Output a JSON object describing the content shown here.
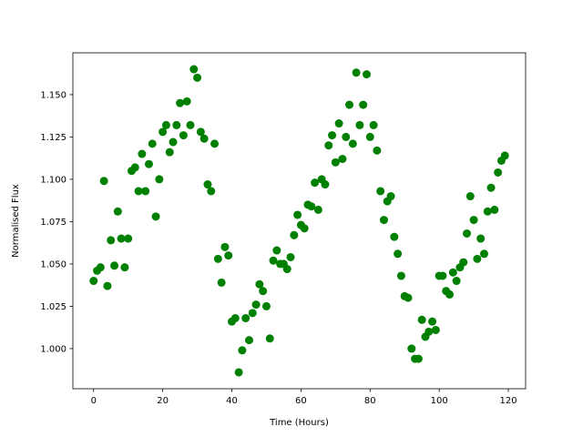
{
  "chart_data": {
    "type": "scatter",
    "title": "",
    "xlabel": "Time (Hours)",
    "ylabel": "Normalised Flux",
    "xlim": [
      -6,
      125
    ],
    "ylim": [
      0.9763,
      1.1747
    ],
    "xticks": [
      0,
      20,
      40,
      60,
      80,
      100,
      120
    ],
    "xtick_labels": [
      "0",
      "20",
      "40",
      "60",
      "80",
      "100",
      "120"
    ],
    "yticks": [
      1.0,
      1.025,
      1.05,
      1.075,
      1.1,
      1.125,
      1.15
    ],
    "ytick_labels": [
      "1.000",
      "1.025",
      "1.050",
      "1.075",
      "1.100",
      "1.125",
      "1.150"
    ],
    "grid": false,
    "color": "#008000",
    "x": [
      0,
      1,
      2,
      3,
      4,
      5,
      6,
      7,
      8,
      9,
      10,
      11,
      12,
      13,
      14,
      15,
      16,
      17,
      18,
      19,
      20,
      21,
      22,
      23,
      24,
      25,
      26,
      27,
      28,
      29,
      30,
      31,
      32,
      33,
      34,
      35,
      36,
      37,
      38,
      39,
      40,
      41,
      42,
      43,
      44,
      45,
      46,
      47,
      48,
      49,
      50,
      51,
      52,
      53,
      54,
      55,
      56,
      57,
      58,
      59,
      60,
      61,
      62,
      63,
      64,
      65,
      66,
      67,
      68,
      69,
      70,
      71,
      72,
      73,
      74,
      75,
      76,
      77,
      78,
      79,
      80,
      81,
      82,
      83,
      84,
      85,
      86,
      87,
      88,
      89,
      90,
      91,
      92,
      93,
      94,
      95,
      96,
      97,
      98,
      99,
      100,
      101,
      102,
      103,
      104,
      105,
      106,
      107,
      108,
      109,
      110,
      111,
      112,
      113,
      114,
      115,
      116,
      117,
      118,
      119
    ],
    "y": [
      1.04,
      1.046,
      1.048,
      1.099,
      1.037,
      1.064,
      1.049,
      1.081,
      1.065,
      1.048,
      1.065,
      1.105,
      1.107,
      1.093,
      1.115,
      1.093,
      1.109,
      1.121,
      1.078,
      1.1,
      1.128,
      1.132,
      1.116,
      1.122,
      1.132,
      1.145,
      1.126,
      1.146,
      1.132,
      1.165,
      1.16,
      1.128,
      1.124,
      1.097,
      1.093,
      1.121,
      1.053,
      1.039,
      1.06,
      1.055,
      1.016,
      1.018,
      0.986,
      0.999,
      1.018,
      1.005,
      1.021,
      1.026,
      1.038,
      1.034,
      1.025,
      1.006,
      1.052,
      1.058,
      1.05,
      1.05,
      1.047,
      1.054,
      1.067,
      1.079,
      1.073,
      1.071,
      1.085,
      1.084,
      1.098,
      1.082,
      1.1,
      1.097,
      1.12,
      1.126,
      1.11,
      1.133,
      1.112,
      1.125,
      1.144,
      1.121,
      1.163,
      1.132,
      1.144,
      1.162,
      1.125,
      1.132,
      1.117,
      1.093,
      1.076,
      1.087,
      1.09,
      1.066,
      1.056,
      1.043,
      1.031,
      1.03,
      1.0,
      0.994,
      0.994,
      1.017,
      1.007,
      1.01,
      1.016,
      1.011,
      1.043,
      1.043,
      1.034,
      1.032,
      1.045,
      1.04,
      1.048,
      1.051,
      1.068,
      1.09,
      1.076,
      1.053,
      1.065,
      1.056,
      1.081,
      1.095,
      1.082,
      1.104,
      1.111,
      1.114
    ]
  }
}
